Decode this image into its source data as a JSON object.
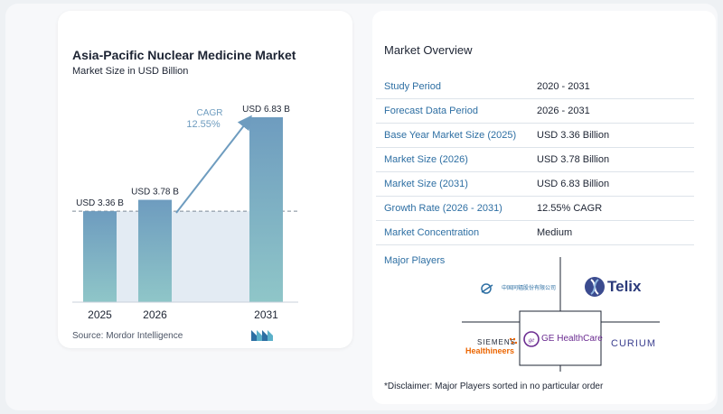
{
  "chart": {
    "title": "Asia-Pacific Nuclear Medicine Market",
    "subtitle": "Market Size in USD Billion",
    "source": "Source:  Mordor Intelligence",
    "cagr_label": "CAGR",
    "cagr_value": "12.55%"
  },
  "chart_data": {
    "type": "bar",
    "title": "Asia-Pacific Nuclear Medicine Market",
    "subtitle": "Market Size in USD Billion",
    "categories": [
      "2025",
      "2026",
      "2031"
    ],
    "values": [
      3.36,
      3.78,
      6.83
    ],
    "data_labels": [
      "USD 3.36 B",
      "USD 3.78 B",
      "USD 6.83 B"
    ],
    "ylim": [
      0,
      6.83
    ],
    "grid": false,
    "annotation": "CAGR 12.55%",
    "colors": {
      "bar_top": "#6e9cbf",
      "bar_bottom": "#8fc6c8",
      "band": "#e3ebf3"
    }
  },
  "overview": {
    "title": "Market Overview",
    "rows": [
      {
        "key": "Study Period",
        "value": "2020 - 2031"
      },
      {
        "key": "Forecast Data Period",
        "value": "2026 - 2031"
      },
      {
        "key": "Base Year Market Size (2025)",
        "value": "USD 3.36 Billion"
      },
      {
        "key": "Market Size (2026)",
        "value": "USD 3.78 Billion"
      },
      {
        "key": "Market Size (2031)",
        "value": "USD 6.83 Billion"
      },
      {
        "key": "Growth Rate (2026 - 2031)",
        "value": "12.55% CAGR"
      },
      {
        "key": "Market Concentration",
        "value": "Medium"
      }
    ],
    "players_title": "Major Players",
    "players": {
      "china_isotope": "中国同辐股份有限公司",
      "telix": "Telix",
      "siemens_line1": "SIEMENS",
      "siemens_line2": "Healthineers",
      "ge": "GE HealthCare",
      "curium": "CURIUM"
    },
    "disclaimer": "*Disclaimer: Major Players sorted in no particular order"
  },
  "colors": {
    "accent": "#2e6fa3",
    "text": "#1d2433"
  }
}
